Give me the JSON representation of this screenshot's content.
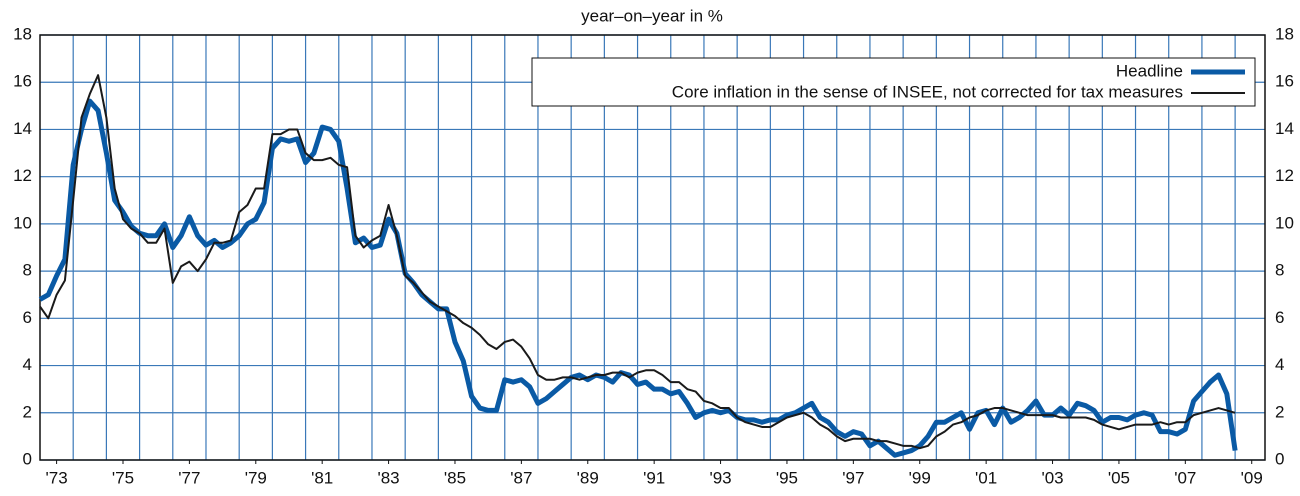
{
  "chart_data": {
    "type": "line",
    "title": "year–on–year in %",
    "x": [
      1973,
      1973.25,
      1973.5,
      1973.75,
      1974,
      1974.25,
      1974.5,
      1974.75,
      1975,
      1975.25,
      1975.5,
      1975.75,
      1976,
      1976.25,
      1976.5,
      1976.75,
      1977,
      1977.25,
      1977.5,
      1977.75,
      1978,
      1978.25,
      1978.5,
      1978.75,
      1979,
      1979.25,
      1979.5,
      1979.75,
      1980,
      1980.25,
      1980.5,
      1980.75,
      1981,
      1981.25,
      1981.5,
      1981.75,
      1982,
      1982.25,
      1982.5,
      1982.75,
      1983,
      1983.25,
      1983.5,
      1983.75,
      1984,
      1984.25,
      1984.5,
      1984.75,
      1985,
      1985.25,
      1985.5,
      1985.75,
      1986,
      1986.25,
      1986.5,
      1986.75,
      1987,
      1987.25,
      1987.5,
      1987.75,
      1988,
      1988.25,
      1988.5,
      1988.75,
      1989,
      1989.25,
      1989.5,
      1989.75,
      1990,
      1990.25,
      1990.5,
      1990.75,
      1991,
      1991.25,
      1991.5,
      1991.75,
      1992,
      1992.25,
      1992.5,
      1992.75,
      1993,
      1993.25,
      1993.5,
      1993.75,
      1994,
      1994.25,
      1994.5,
      1994.75,
      1995,
      1995.25,
      1995.5,
      1995.75,
      1996,
      1996.25,
      1996.5,
      1996.75,
      1997,
      1997.25,
      1997.5,
      1997.75,
      1998,
      1998.25,
      1998.5,
      1998.75,
      1999,
      1999.25,
      1999.5,
      1999.75,
      2000,
      2000.25,
      2000.5,
      2000.75,
      2001,
      2001.25,
      2001.5,
      2001.75,
      2002,
      2002.25,
      2002.5,
      2002.75,
      2003,
      2003.25,
      2003.5,
      2003.75,
      2004,
      2004.25,
      2004.5,
      2004.75,
      2005,
      2005.25,
      2005.5,
      2005.75,
      2006,
      2006.25,
      2006.5,
      2006.75,
      2007,
      2007.25,
      2007.5,
      2007.75,
      2008,
      2008.25,
      2008.5,
      2008.75,
      2009
    ],
    "series": [
      {
        "name": "Headline",
        "color": "#0a5aa5",
        "width": 5,
        "values": [
          6.8,
          7.0,
          7.8,
          8.5,
          12.5,
          14.0,
          15.2,
          14.8,
          13.0,
          11.0,
          10.5,
          9.9,
          9.6,
          9.5,
          9.5,
          10.0,
          9.0,
          9.5,
          10.3,
          9.5,
          9.1,
          9.3,
          9.0,
          9.2,
          9.5,
          10.0,
          10.2,
          10.9,
          13.2,
          13.6,
          13.5,
          13.6,
          12.6,
          13.0,
          14.1,
          14.0,
          13.5,
          11.5,
          9.2,
          9.4,
          9.0,
          9.1,
          10.2,
          9.6,
          7.9,
          7.5,
          7.0,
          6.7,
          6.4,
          6.4,
          5.0,
          4.2,
          2.7,
          2.2,
          2.1,
          2.1,
          3.4,
          3.3,
          3.4,
          3.1,
          2.4,
          2.6,
          2.9,
          3.2,
          3.5,
          3.6,
          3.4,
          3.6,
          3.5,
          3.3,
          3.7,
          3.6,
          3.2,
          3.3,
          3.0,
          3.0,
          2.8,
          2.9,
          2.4,
          1.8,
          2.0,
          2.1,
          2.0,
          2.1,
          1.8,
          1.7,
          1.7,
          1.6,
          1.7,
          1.7,
          1.9,
          2.0,
          2.2,
          2.4,
          1.8,
          1.6,
          1.2,
          1.0,
          1.2,
          1.1,
          0.6,
          0.8,
          0.5,
          0.2,
          0.3,
          0.4,
          0.6,
          1.0,
          1.6,
          1.6,
          1.8,
          2.0,
          1.3,
          2.0,
          2.1,
          1.5,
          2.2,
          1.6,
          1.8,
          2.1,
          2.5,
          1.9,
          1.9,
          2.2,
          1.9,
          2.4,
          2.3,
          2.1,
          1.6,
          1.8,
          1.8,
          1.7,
          1.9,
          2.0,
          1.9,
          1.2,
          1.2,
          1.1,
          1.3,
          2.5,
          2.9,
          3.3,
          3.6,
          2.8,
          0.4
        ]
      },
      {
        "name": "Core inflation in the sense of INSEE, not corrected for tax measures",
        "color": "#1a1a1a",
        "width": 2,
        "values": [
          6.5,
          6.0,
          7.0,
          7.6,
          11.0,
          14.5,
          15.5,
          16.3,
          14.5,
          11.5,
          10.2,
          9.8,
          9.6,
          9.2,
          9.2,
          9.8,
          7.5,
          8.2,
          8.4,
          8.0,
          8.5,
          9.2,
          9.2,
          9.3,
          10.5,
          10.8,
          11.5,
          11.5,
          13.8,
          13.8,
          14.0,
          14.0,
          13.0,
          12.7,
          12.7,
          12.8,
          12.5,
          12.4,
          9.5,
          9.0,
          9.3,
          9.5,
          10.8,
          9.5,
          7.8,
          7.5,
          7.1,
          6.7,
          6.5,
          6.3,
          6.1,
          5.8,
          5.6,
          5.3,
          4.9,
          4.7,
          5.0,
          5.1,
          4.8,
          4.3,
          3.6,
          3.4,
          3.4,
          3.5,
          3.5,
          3.4,
          3.5,
          3.6,
          3.6,
          3.7,
          3.7,
          3.5,
          3.7,
          3.8,
          3.8,
          3.6,
          3.3,
          3.3,
          3.0,
          2.9,
          2.5,
          2.4,
          2.2,
          2.2,
          1.8,
          1.6,
          1.5,
          1.4,
          1.4,
          1.6,
          1.8,
          1.9,
          2.0,
          1.8,
          1.5,
          1.3,
          1.0,
          0.8,
          0.9,
          0.9,
          0.9,
          0.8,
          0.8,
          0.7,
          0.6,
          0.6,
          0.5,
          0.6,
          1.0,
          1.2,
          1.5,
          1.6,
          1.8,
          1.9,
          2.1,
          2.2,
          2.2,
          2.1,
          2.0,
          1.9,
          1.9,
          1.9,
          1.9,
          1.8,
          1.8,
          1.8,
          1.8,
          1.7,
          1.5,
          1.4,
          1.3,
          1.4,
          1.5,
          1.5,
          1.5,
          1.6,
          1.5,
          1.6,
          1.6,
          1.9,
          2.0,
          2.1,
          2.2,
          2.1,
          2.0
        ]
      }
    ],
    "xlim": [
      1973,
      2009.9
    ],
    "xticks": [
      {
        "value": 1973.5,
        "label": "'73"
      },
      {
        "value": 1975.5,
        "label": "'75"
      },
      {
        "value": 1977.5,
        "label": "'77"
      },
      {
        "value": 1979.5,
        "label": "'79"
      },
      {
        "value": 1981.5,
        "label": "'81"
      },
      {
        "value": 1983.5,
        "label": "'83"
      },
      {
        "value": 1985.5,
        "label": "'85"
      },
      {
        "value": 1987.5,
        "label": "'87"
      },
      {
        "value": 1989.5,
        "label": "'89"
      },
      {
        "value": 1991.5,
        "label": "'91"
      },
      {
        "value": 1993.5,
        "label": "'93"
      },
      {
        "value": 1995.5,
        "label": "'95"
      },
      {
        "value": 1997.5,
        "label": "'97"
      },
      {
        "value": 1999.5,
        "label": "'99"
      },
      {
        "value": 2001.5,
        "label": "'01"
      },
      {
        "value": 2003.5,
        "label": "'03"
      },
      {
        "value": 2005.5,
        "label": "'05"
      },
      {
        "value": 2007.5,
        "label": "'07"
      },
      {
        "value": 2009.5,
        "label": "'09"
      }
    ],
    "xgrid": [
      1974,
      1975,
      1976,
      1977,
      1978,
      1979,
      1980,
      1981,
      1982,
      1983,
      1984,
      1985,
      1986,
      1987,
      1988,
      1989,
      1990,
      1991,
      1992,
      1993,
      1994,
      1995,
      1996,
      1997,
      1998,
      1999,
      2000,
      2001,
      2002,
      2003,
      2004,
      2005,
      2006,
      2007,
      2008,
      2009
    ],
    "ylim": [
      0,
      18
    ],
    "yticks": [
      0,
      2,
      4,
      6,
      8,
      10,
      12,
      14,
      16,
      18
    ],
    "grid": true,
    "grid_color": "#3a78b8",
    "legend": "upper right"
  }
}
